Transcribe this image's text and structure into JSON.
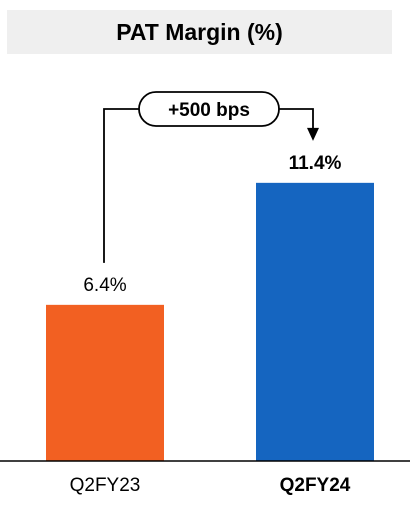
{
  "title": "PAT Margin (%)",
  "annotation": {
    "label": "+500 bps"
  },
  "chart_data": {
    "type": "bar",
    "title": "PAT Margin (%)",
    "categories": [
      "Q2FY23",
      "Q2FY24"
    ],
    "values": [
      6.4,
      11.4
    ],
    "value_labels": [
      "6.4%",
      "11.4%"
    ],
    "bar_colors": [
      "#f26022",
      "#1565c0"
    ],
    "highlight_category_bold": [
      false,
      true
    ],
    "xlabel": "",
    "ylabel": "",
    "ylim": [
      0,
      12
    ],
    "grid": false,
    "legend": "none"
  }
}
